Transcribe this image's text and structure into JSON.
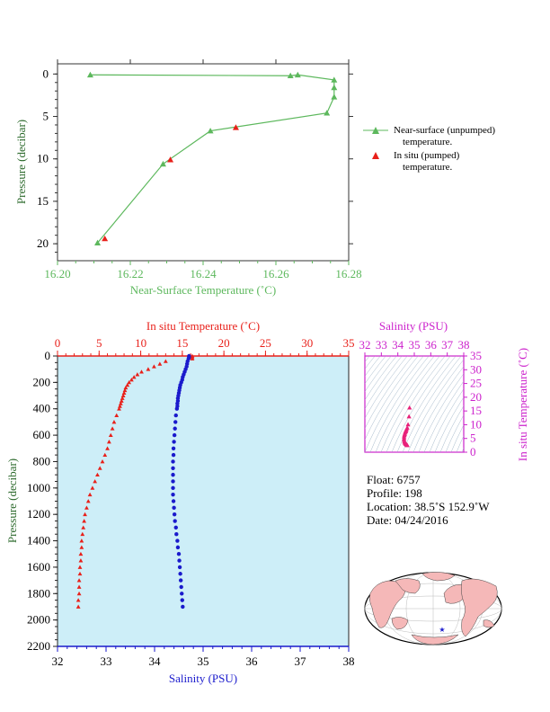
{
  "chart_data": [
    {
      "type": "line",
      "xlabel": "Near-Surface Temperature (˚C)",
      "ylabel": "Pressure (decibar)",
      "xlim": [
        16.2,
        16.28
      ],
      "ylim": [
        22,
        -1.2
      ],
      "x_ticks": [
        "16.20",
        "16.22",
        "16.24",
        "16.26",
        "16.28"
      ],
      "y_ticks": [
        "0",
        "5",
        "10",
        "15",
        "20"
      ],
      "series": [
        {
          "name": "Near-surface (unpumped) temperature.",
          "color": "#5db85d",
          "marker": "triangle",
          "x": [
            16.209,
            16.264,
            16.266,
            16.276,
            16.276,
            16.276,
            16.274,
            16.242,
            16.229,
            16.211
          ],
          "y": [
            0.1,
            0.2,
            0.1,
            0.7,
            1.6,
            2.7,
            4.6,
            6.7,
            10.6,
            19.9
          ]
        },
        {
          "name": "In situ (pumped) temperature.",
          "color": "#e8201a",
          "marker": "triangle",
          "x": [
            16.249,
            16.231,
            16.213
          ],
          "y": [
            6.3,
            10.1,
            19.4
          ]
        }
      ],
      "legend": [
        {
          "line1": "Near-surface (unpumped)",
          "line2": "temperature."
        },
        {
          "line1": "In situ (pumped)",
          "line2": "temperature."
        }
      ]
    },
    {
      "type": "scatter",
      "background": "#cdeef8",
      "top_axis_label": "In situ Temperature (˚C)",
      "bottom_axis_label": "Salinity (PSU)",
      "ylabel": "Pressure (decibar)",
      "temperature_range": [
        0,
        35
      ],
      "salinity_range": [
        32,
        38
      ],
      "pressure_range": [
        0,
        2200
      ],
      "temperature_ticks": [
        "0",
        "5",
        "10",
        "15",
        "20",
        "25",
        "30",
        "35"
      ],
      "salinity_ticks": [
        "32",
        "33",
        "34",
        "35",
        "36",
        "37",
        "38"
      ],
      "pressure_ticks": [
        "0",
        "200",
        "400",
        "600",
        "800",
        "1000",
        "1200",
        "1400",
        "1600",
        "1800",
        "2000",
        "2200"
      ],
      "temperature_profile": {
        "color": "#e8201a",
        "pressure": [
          0,
          10,
          20,
          40,
          60,
          80,
          100,
          120,
          140,
          160,
          180,
          200,
          220,
          240,
          260,
          280,
          300,
          320,
          340,
          360,
          380,
          400,
          450,
          500,
          550,
          600,
          650,
          700,
          750,
          800,
          850,
          900,
          950,
          1000,
          1050,
          1100,
          1150,
          1200,
          1250,
          1300,
          1350,
          1400,
          1450,
          1500,
          1550,
          1600,
          1650,
          1700,
          1750,
          1800,
          1850,
          1900
        ],
        "temperature": [
          16.2,
          16.2,
          16.2,
          13.0,
          12.3,
          11.6,
          10.9,
          10.1,
          9.6,
          9.2,
          8.9,
          8.6,
          8.4,
          8.2,
          8.1,
          8.0,
          7.9,
          7.8,
          7.7,
          7.6,
          7.5,
          7.4,
          7.1,
          6.8,
          6.6,
          6.4,
          6.2,
          6.0,
          5.7,
          5.4,
          5.1,
          4.8,
          4.5,
          4.2,
          3.9,
          3.7,
          3.5,
          3.3,
          3.2,
          3.1,
          3.0,
          2.9,
          2.9,
          2.8,
          2.8,
          2.7,
          2.7,
          2.6,
          2.6,
          2.6,
          2.5,
          2.5
        ]
      },
      "salinity_profile": {
        "color": "#1a1acc",
        "pressure": [
          0,
          10,
          20,
          40,
          60,
          80,
          100,
          120,
          140,
          160,
          180,
          200,
          220,
          240,
          260,
          280,
          300,
          320,
          340,
          360,
          380,
          400,
          450,
          500,
          550,
          600,
          650,
          700,
          750,
          800,
          850,
          900,
          950,
          1000,
          1050,
          1100,
          1150,
          1200,
          1250,
          1300,
          1350,
          1400,
          1450,
          1500,
          1550,
          1600,
          1650,
          1700,
          1750,
          1800,
          1850,
          1900
        ],
        "salinity": [
          34.71,
          34.71,
          34.7,
          34.68,
          34.67,
          34.66,
          34.64,
          34.62,
          34.6,
          34.58,
          34.57,
          34.55,
          34.53,
          34.52,
          34.51,
          34.5,
          34.49,
          34.48,
          34.48,
          34.47,
          34.47,
          34.46,
          34.44,
          34.43,
          34.42,
          34.41,
          34.4,
          34.39,
          34.39,
          34.38,
          34.38,
          34.38,
          34.38,
          34.38,
          34.38,
          34.39,
          34.4,
          34.41,
          34.42,
          34.44,
          34.45,
          34.47,
          34.48,
          34.5,
          34.51,
          34.52,
          34.53,
          34.54,
          34.55,
          34.56,
          34.57,
          34.58
        ]
      }
    },
    {
      "type": "scatter",
      "title": "Salinity (PSU)",
      "ylabel": "In situ Temperature (˚C)",
      "xlim": [
        32,
        38
      ],
      "ylim": [
        0,
        35
      ],
      "x_ticks": [
        "32",
        "33",
        "34",
        "35",
        "36",
        "37",
        "38"
      ],
      "y_ticks": [
        "0",
        "5",
        "10",
        "15",
        "20",
        "25",
        "30",
        "35"
      ],
      "color": "#e8207a",
      "salinity": [
        34.71,
        34.68,
        34.62,
        34.57,
        34.53,
        34.5,
        34.48,
        34.47,
        34.44,
        34.42,
        34.4,
        34.38,
        34.38,
        34.38,
        34.4,
        34.42,
        34.45,
        34.48,
        34.51,
        34.53,
        34.55,
        34.57,
        34.58
      ],
      "temperature": [
        16.2,
        13.0,
        10.1,
        8.9,
        8.4,
        8.0,
        7.7,
        7.5,
        7.1,
        6.6,
        6.2,
        5.7,
        5.1,
        4.5,
        3.9,
        3.5,
        3.2,
        3.0,
        2.9,
        2.8,
        2.7,
        2.6,
        2.5
      ]
    }
  ],
  "float_info": {
    "float": "Float:  6757",
    "profile": "Profile:  198",
    "location": "Location:  38.5˚S  152.9˚W",
    "date": "Date:  04/24/2016"
  },
  "colors": {
    "green_axis": "#5db85d",
    "red_axis": "#e8201a",
    "blue_axis": "#1a1acc",
    "magenta_axis": "#cc22cc",
    "dark_green_axis": "#2e6b2e",
    "map_land": "#f5b8b8",
    "map_ocean": "#ffffff"
  },
  "map": {
    "marker": "★"
  }
}
